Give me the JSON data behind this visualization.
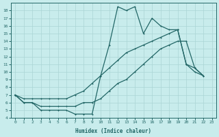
{
  "xlabel": "Humidex (Indice chaleur)",
  "xlim": [
    -0.5,
    23.5
  ],
  "ylim": [
    4,
    19
  ],
  "yticks": [
    4,
    5,
    6,
    7,
    8,
    9,
    10,
    11,
    12,
    13,
    14,
    15,
    16,
    17,
    18
  ],
  "xticks": [
    0,
    1,
    2,
    3,
    4,
    5,
    6,
    7,
    8,
    9,
    10,
    11,
    12,
    13,
    14,
    15,
    16,
    17,
    18,
    19,
    20,
    21,
    22,
    23
  ],
  "bg_color": "#c8ecec",
  "line_color": "#226666",
  "grid_color": "#aad4d4",
  "line1_x": [
    0,
    1,
    2,
    3,
    4,
    5,
    6,
    7,
    8,
    9,
    10,
    11,
    12,
    13,
    14,
    15,
    16,
    17,
    18,
    19,
    20,
    21,
    22
  ],
  "line1_y": [
    7,
    6,
    6,
    5,
    5,
    5,
    5,
    4.5,
    4.5,
    4.5,
    9.5,
    13.5,
    18.5,
    18.0,
    18.5,
    15.0,
    17.0,
    16.0,
    15.5,
    15.5,
    11.0,
    10.0,
    9.5
  ],
  "line2_x": [
    0,
    1,
    2,
    3,
    4,
    5,
    6,
    7,
    8,
    9,
    10,
    11,
    12,
    13,
    14,
    15,
    16,
    17,
    18,
    19,
    20,
    21,
    22
  ],
  "line2_y": [
    7,
    6.5,
    6.5,
    6.5,
    6.5,
    6.5,
    6.5,
    7.0,
    7.5,
    8.5,
    9.5,
    10.5,
    11.5,
    12.5,
    13.0,
    13.5,
    14.0,
    14.5,
    15.0,
    15.5,
    11.0,
    10.5,
    9.5
  ],
  "line3_x": [
    0,
    1,
    2,
    3,
    4,
    5,
    6,
    7,
    8,
    9,
    10,
    11,
    12,
    13,
    14,
    15,
    16,
    17,
    18,
    19,
    20,
    21,
    22
  ],
  "line3_y": [
    7,
    6.0,
    6.0,
    5.5,
    5.5,
    5.5,
    5.5,
    5.5,
    6.0,
    6.0,
    6.5,
    7.5,
    8.5,
    9.0,
    10.0,
    11.0,
    12.0,
    13.0,
    13.5,
    14.0,
    14.0,
    10.5,
    9.5
  ]
}
